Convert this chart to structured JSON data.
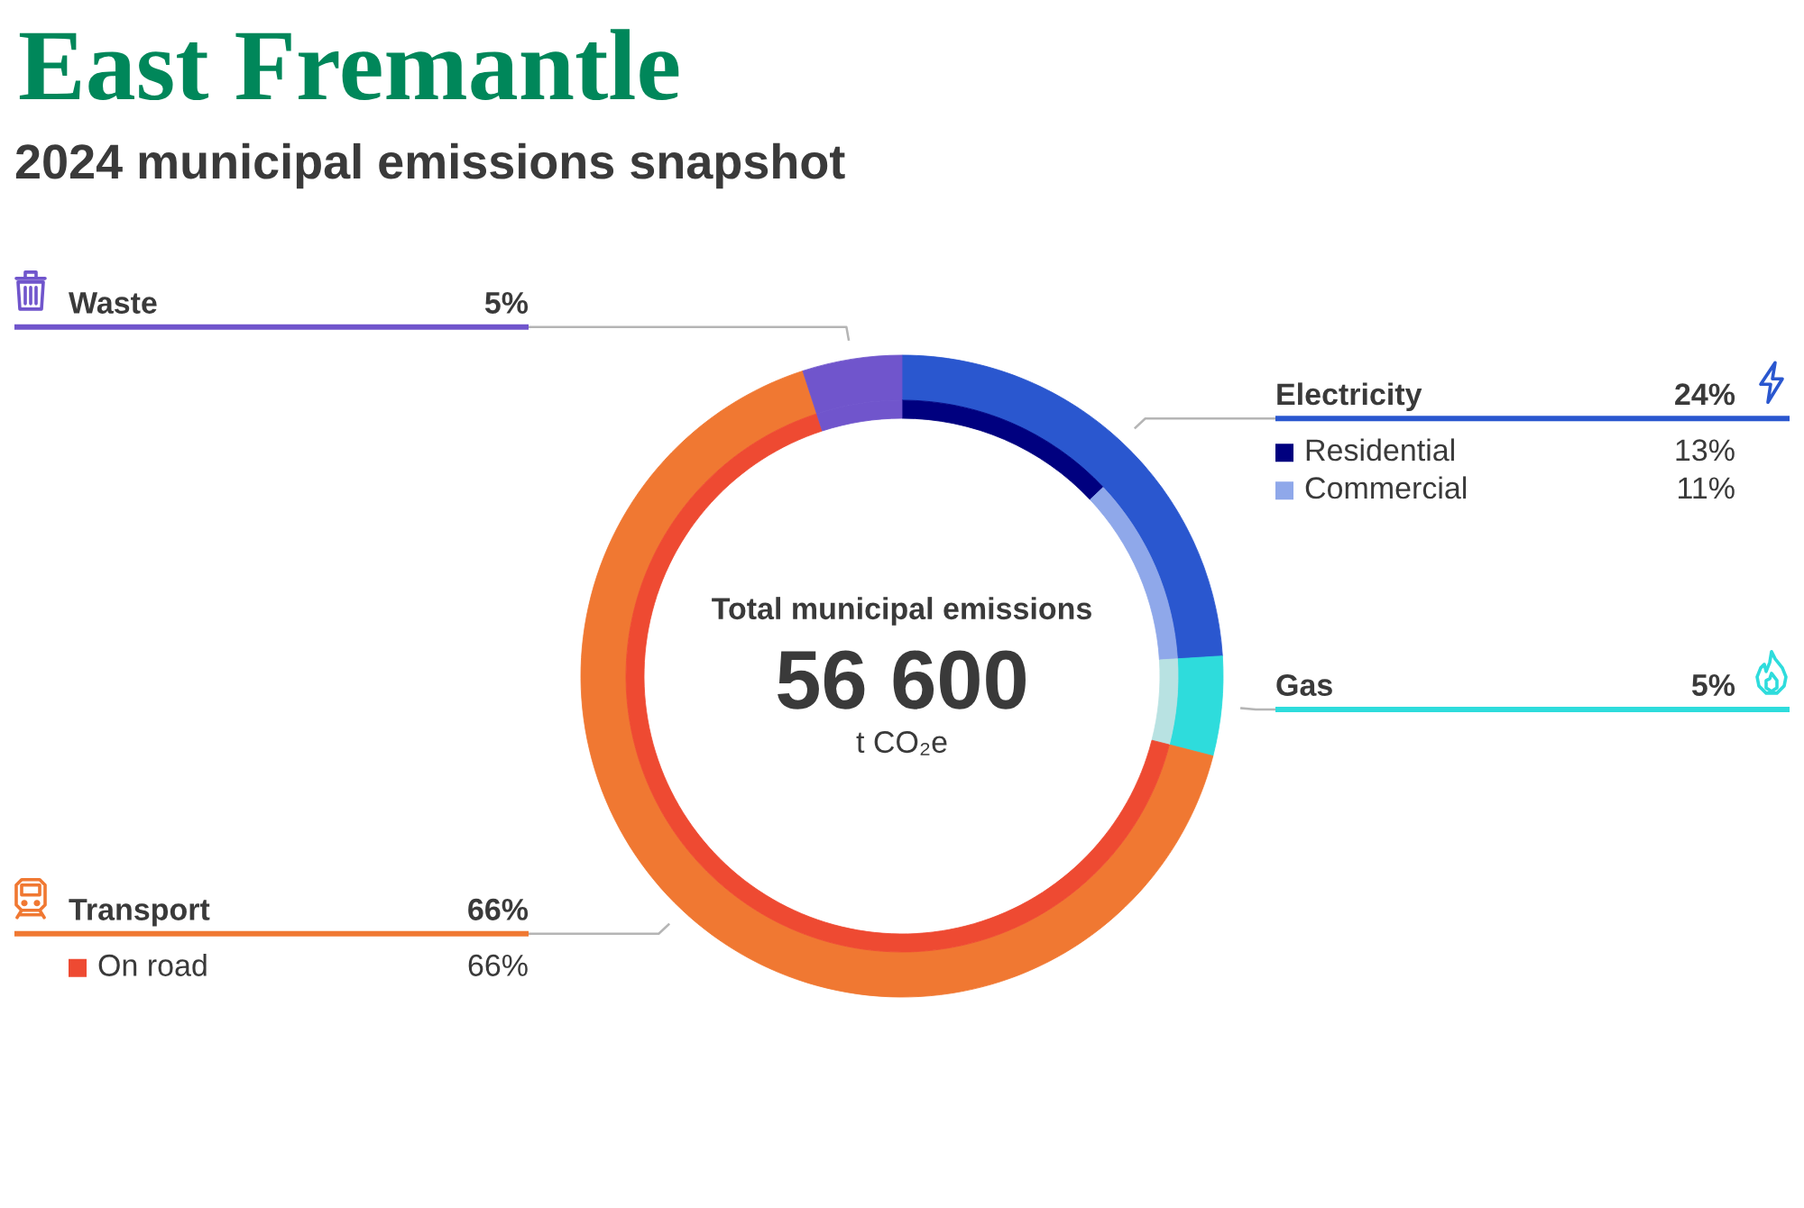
{
  "chart_data": {
    "type": "donut",
    "title": "East Fremantle",
    "subtitle": "2024 municipal emissions snapshot",
    "categories": [
      "Electricity",
      "Gas",
      "Transport",
      "Waste",
      "Residential",
      "Commercial",
      null,
      "On road",
      null
    ],
    "series": [
      {
        "values": [
          24,
          5,
          66,
          5,
          null,
          null,
          null,
          null,
          null
        ],
        "colors": [
          "#2a57cf",
          "#2edcdc",
          "#f07832",
          "#7055cc",
          null,
          null,
          null,
          null,
          null
        ],
        "value_labels": [
          "24%",
          "5%",
          "66%",
          "5%",
          null,
          null,
          null,
          null,
          null
        ]
      },
      {
        "values": [
          null,
          null,
          null,
          null,
          13,
          11,
          5,
          66,
          5
        ],
        "colors": [
          null,
          null,
          null,
          null,
          "#00007f",
          "#8fa8ea",
          "#b8e2e2",
          "#ee4a32",
          "#7055cc"
        ],
        "value_labels": [
          null,
          null,
          null,
          null,
          "13%",
          "11%",
          null,
          "66%",
          null
        ]
      }
    ],
    "legend": "left",
    "annotations": [
      "Total municipal emissions",
      "56 600",
      "t CO₂e"
    ]
  }
}
